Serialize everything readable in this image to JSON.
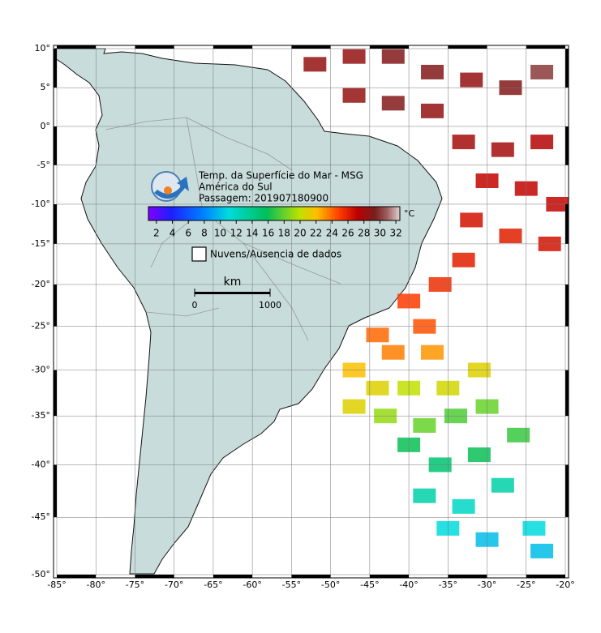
{
  "title": {
    "line1": "Temp. da Superfície do Mar - MSG",
    "line2": "América do Sul",
    "line3": "Passagem: 201907180900"
  },
  "colorbar": {
    "unit": "°C",
    "range": [
      1,
      32.5
    ],
    "ticks": [
      2,
      4,
      6,
      8,
      10,
      12,
      14,
      16,
      18,
      20,
      22,
      24,
      26,
      28,
      30,
      32
    ]
  },
  "legend": {
    "label": "Nuvens/Ausencia de dados"
  },
  "scale_bar": {
    "unit": "km",
    "ticks": [
      0,
      1000
    ]
  },
  "map": {
    "lon_ticks": [
      {
        "value": -85,
        "label": "-85°"
      },
      {
        "value": -80,
        "label": "-80°"
      },
      {
        "value": -75,
        "label": "-75°"
      },
      {
        "value": -70,
        "label": "-70°"
      },
      {
        "value": -65,
        "label": "-65°"
      },
      {
        "value": -60,
        "label": "-60°"
      },
      {
        "value": -55,
        "label": "-55°"
      },
      {
        "value": -50,
        "label": "-50°"
      },
      {
        "value": -45,
        "label": "-45°"
      },
      {
        "value": -40,
        "label": "-40°"
      },
      {
        "value": -35,
        "label": "-35°"
      },
      {
        "value": -30,
        "label": "-30°"
      },
      {
        "value": -25,
        "label": "-25°"
      },
      {
        "value": -20,
        "label": "-20°"
      }
    ],
    "lat_ticks": [
      {
        "value": 10,
        "label": "10°"
      },
      {
        "value": 5,
        "label": "5°"
      },
      {
        "value": 0,
        "label": "0°"
      },
      {
        "value": -5,
        "label": "-5°"
      },
      {
        "value": -10,
        "label": "-10°"
      },
      {
        "value": -15,
        "label": "-15°"
      },
      {
        "value": -20,
        "label": "-20°"
      },
      {
        "value": -25,
        "label": "-25°"
      },
      {
        "value": -30,
        "label": "-30°"
      },
      {
        "value": -35,
        "label": "-35°"
      },
      {
        "value": -40,
        "label": "-40°"
      },
      {
        "value": -45,
        "label": "-45°"
      },
      {
        "value": -50,
        "label": "-50°"
      }
    ],
    "sst_samples": [
      {
        "lon": -52,
        "lat": 8,
        "value": 28.5
      },
      {
        "lon": -47,
        "lat": 9,
        "value": 28.5
      },
      {
        "lon": -42,
        "lat": 9,
        "value": 29
      },
      {
        "lon": -37,
        "lat": 7,
        "value": 29
      },
      {
        "lon": -32,
        "lat": 6,
        "value": 28.5
      },
      {
        "lon": -27,
        "lat": 5,
        "value": 29
      },
      {
        "lon": -23,
        "lat": 7,
        "value": 30
      },
      {
        "lon": -47,
        "lat": 4,
        "value": 28.5
      },
      {
        "lon": -42,
        "lat": 3,
        "value": 29
      },
      {
        "lon": -37,
        "lat": 2,
        "value": 28.5
      },
      {
        "lon": -33,
        "lat": -2,
        "value": 28
      },
      {
        "lon": -28,
        "lat": -3,
        "value": 28
      },
      {
        "lon": -23,
        "lat": -2,
        "value": 27.5
      },
      {
        "lon": -30,
        "lat": -7,
        "value": 27
      },
      {
        "lon": -25,
        "lat": -8,
        "value": 27
      },
      {
        "lon": -21,
        "lat": -10,
        "value": 27
      },
      {
        "lon": -32,
        "lat": -12,
        "value": 26.5
      },
      {
        "lon": -27,
        "lat": -14,
        "value": 26
      },
      {
        "lon": -22,
        "lat": -15,
        "value": 26.5
      },
      {
        "lon": -33,
        "lat": -17,
        "value": 26
      },
      {
        "lon": -36,
        "lat": -20,
        "value": 25.5
      },
      {
        "lon": -40,
        "lat": -22,
        "value": 25
      },
      {
        "lon": -38,
        "lat": -25,
        "value": 24.5
      },
      {
        "lon": -44,
        "lat": -26,
        "value": 24
      },
      {
        "lon": -42,
        "lat": -28,
        "value": 23.5
      },
      {
        "lon": -37,
        "lat": -28,
        "value": 23
      },
      {
        "lon": -47,
        "lat": -30,
        "value": 22
      },
      {
        "lon": -44,
        "lat": -32,
        "value": 21
      },
      {
        "lon": -40,
        "lat": -32,
        "value": 20
      },
      {
        "lon": -35,
        "lat": -32,
        "value": 20.5
      },
      {
        "lon": -31,
        "lat": -30,
        "value": 21
      },
      {
        "lon": -47,
        "lat": -34,
        "value": 21
      },
      {
        "lon": -43,
        "lat": -35,
        "value": 19
      },
      {
        "lon": -38,
        "lat": -36,
        "value": 18
      },
      {
        "lon": -34,
        "lat": -35,
        "value": 17.5
      },
      {
        "lon": -30,
        "lat": -34,
        "value": 18
      },
      {
        "lon": -40,
        "lat": -38,
        "value": 16
      },
      {
        "lon": -36,
        "lat": -40,
        "value": 15
      },
      {
        "lon": -31,
        "lat": -39,
        "value": 16
      },
      {
        "lon": -26,
        "lat": -37,
        "value": 17
      },
      {
        "lon": -38,
        "lat": -43,
        "value": 13
      },
      {
        "lon": -33,
        "lat": -44,
        "value": 12
      },
      {
        "lon": -28,
        "lat": -42,
        "value": 13
      },
      {
        "lon": -35,
        "lat": -46,
        "value": 11
      },
      {
        "lon": -30,
        "lat": -47,
        "value": 10
      },
      {
        "lon": -24,
        "lat": -46,
        "value": 11
      },
      {
        "lon": -23,
        "lat": -48,
        "value": 10
      }
    ]
  }
}
